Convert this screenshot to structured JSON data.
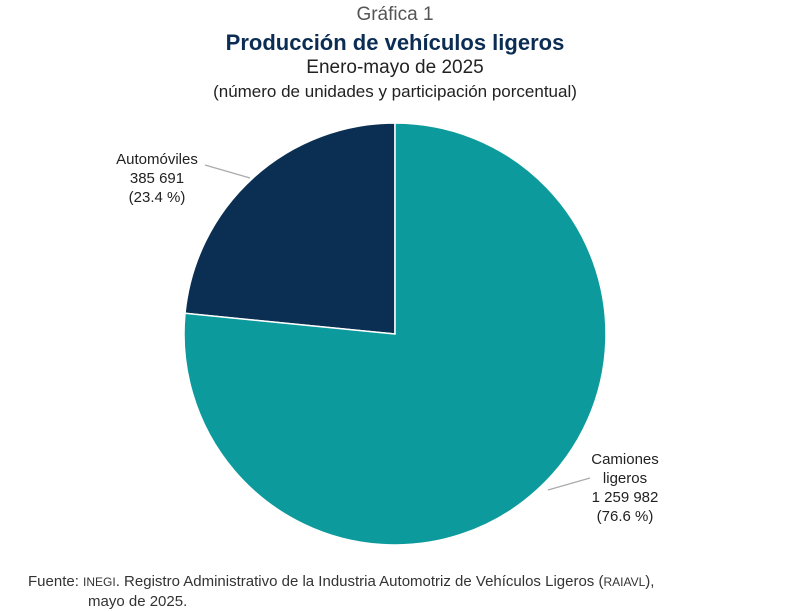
{
  "chart_data": {
    "type": "pie",
    "kicker": "Gráfica 1",
    "title": "Producción de vehículos ligeros",
    "subtitle": "Enero-mayo de 2025",
    "units": "(número de unidades y participación porcentual)",
    "slices": [
      {
        "label": "Automóviles",
        "value": 385691,
        "value_text": "385 691",
        "percent": 23.4,
        "percent_text": "(23.4 %)",
        "color": "#0a2f52"
      },
      {
        "label": "Camiones ligeros",
        "label_line1": "Camiones",
        "label_line2": "ligeros",
        "value": 1259982,
        "value_text": "1 259 982",
        "percent": 76.6,
        "percent_text": "(76.6 %)",
        "color": "#0d9a9c"
      }
    ],
    "start_angle": "12 o'clock, Automóviles counterclockwise",
    "legend": "none"
  },
  "source": {
    "prefix": "Fuente: ",
    "org": "INEGI",
    "text": ". Registro Administrativo de la Industria Automotriz de Vehículos Ligeros (",
    "abbr": "RAIAVL",
    "end": "),",
    "line2": "mayo de 2025."
  }
}
